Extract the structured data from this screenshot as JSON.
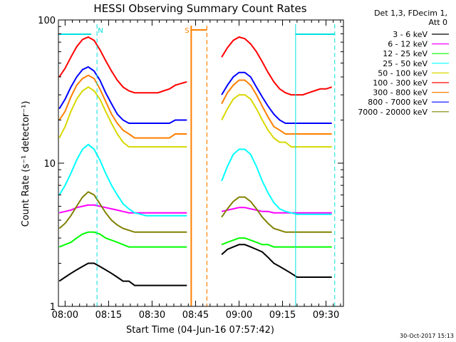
{
  "chart_data": {
    "type": "line",
    "title": "HESSI Observing Summary Count Rates",
    "xlabel": "Start Time (04-Jun-16 07:57:42)",
    "ylabel": "Count Rate (s⁻¹ detector⁻¹)",
    "y_scale": "log",
    "ylim": [
      1,
      100
    ],
    "xlim": [
      "07:57:42",
      "09:36:00"
    ],
    "x_ticks": [
      "08:00",
      "08:15",
      "08:30",
      "08:45",
      "09:00",
      "09:15",
      "09:30"
    ],
    "y_ticks": [
      "1",
      "10",
      "100"
    ],
    "legend_header": [
      "Det 1,3, FDecim 1,",
      "Att 0"
    ],
    "legend_position": "top-right",
    "data_gaps": [
      [
        "08:43:30",
        "08:53:30"
      ]
    ],
    "x": [
      "07:58",
      "08:00",
      "08:02",
      "08:04",
      "08:06",
      "08:08",
      "08:10",
      "08:12",
      "08:14",
      "08:16",
      "08:18",
      "08:20",
      "08:22",
      "08:24",
      "08:26",
      "08:28",
      "08:30",
      "08:32",
      "08:34",
      "08:36",
      "08:38",
      "08:40",
      "08:42",
      "08:54",
      "08:56",
      "08:58",
      "09:00",
      "09:02",
      "09:04",
      "09:06",
      "09:08",
      "09:10",
      "09:12",
      "09:14",
      "09:16",
      "09:18",
      "09:20",
      "09:22",
      "09:24",
      "09:26",
      "09:28",
      "09:30",
      "09:32"
    ],
    "series": [
      {
        "name": "3 - 6 keV",
        "color": "#000000",
        "values": [
          1.5,
          1.6,
          1.7,
          1.8,
          1.9,
          2.0,
          2.0,
          1.9,
          1.8,
          1.7,
          1.6,
          1.5,
          1.5,
          1.4,
          1.4,
          1.4,
          1.4,
          1.4,
          1.4,
          1.4,
          1.4,
          1.4,
          1.4,
          2.3,
          2.5,
          2.6,
          2.7,
          2.7,
          2.6,
          2.5,
          2.4,
          2.2,
          2.0,
          1.9,
          1.8,
          1.7,
          1.6,
          1.6,
          1.6,
          1.6,
          1.6,
          1.6,
          1.6
        ]
      },
      {
        "name": "6 - 12 keV",
        "color": "#ff00ff",
        "values": [
          4.5,
          4.6,
          4.7,
          4.9,
          5.0,
          5.1,
          5.1,
          5.0,
          4.9,
          4.8,
          4.7,
          4.6,
          4.5,
          4.5,
          4.5,
          4.5,
          4.5,
          4.5,
          4.5,
          4.5,
          4.5,
          4.5,
          4.5,
          4.6,
          4.7,
          4.8,
          4.9,
          4.9,
          4.8,
          4.7,
          4.6,
          4.6,
          4.5,
          4.5,
          4.5,
          4.5,
          4.5,
          4.5,
          4.5,
          4.5,
          4.5,
          4.5,
          4.5
        ]
      },
      {
        "name": "12 - 25 keV",
        "color": "#00ff00",
        "values": [
          2.6,
          2.7,
          2.8,
          3.0,
          3.2,
          3.3,
          3.3,
          3.2,
          3.0,
          2.9,
          2.8,
          2.7,
          2.6,
          2.6,
          2.6,
          2.6,
          2.6,
          2.6,
          2.6,
          2.6,
          2.6,
          2.6,
          2.6,
          2.7,
          2.8,
          2.9,
          3.0,
          3.0,
          2.9,
          2.8,
          2.7,
          2.7,
          2.6,
          2.6,
          2.6,
          2.6,
          2.6,
          2.6,
          2.6,
          2.6,
          2.6,
          2.6,
          2.6
        ]
      },
      {
        "name": "25 - 50 keV",
        "color": "#00ffff",
        "values": [
          6.0,
          7.0,
          8.5,
          10.5,
          12.5,
          13.5,
          12.5,
          10.5,
          8.5,
          7.0,
          6.0,
          5.2,
          4.8,
          4.5,
          4.4,
          4.3,
          4.3,
          4.3,
          4.3,
          4.3,
          4.3,
          4.3,
          4.3,
          7.5,
          9.5,
          11.5,
          12.5,
          12.5,
          11.5,
          9.5,
          7.5,
          6.2,
          5.3,
          4.8,
          4.6,
          4.5,
          4.4,
          4.4,
          4.4,
          4.4,
          4.4,
          4.4,
          4.4
        ]
      },
      {
        "name": "50 - 100 keV",
        "color": "#d8d800",
        "values": [
          15,
          18,
          23,
          28,
          32,
          34,
          32,
          28,
          23,
          19,
          16,
          14,
          13,
          13,
          13,
          13,
          13,
          13,
          13,
          13,
          13,
          13,
          13,
          20,
          24,
          28,
          30,
          30,
          28,
          24,
          20,
          17,
          15,
          14,
          14,
          13,
          13,
          13,
          13,
          13,
          13,
          13,
          13
        ]
      },
      {
        "name": "100 - 300 keV",
        "color": "#ff0000",
        "values": [
          40,
          46,
          55,
          65,
          73,
          76,
          72,
          62,
          52,
          44,
          38,
          34,
          32,
          31,
          31,
          31,
          31,
          31,
          32,
          33,
          35,
          36,
          37,
          55,
          64,
          72,
          76,
          74,
          68,
          60,
          51,
          43,
          37,
          33,
          31,
          30,
          30,
          30,
          31,
          32,
          33,
          33,
          34
        ]
      },
      {
        "name": "300 - 800 keV",
        "color": "#ff8000",
        "values": [
          20,
          23,
          29,
          35,
          39,
          41,
          39,
          33,
          27,
          22,
          19,
          17,
          16,
          15,
          15,
          15,
          15,
          15,
          15,
          15,
          16,
          16,
          16,
          26,
          31,
          35,
          38,
          38,
          35,
          30,
          25,
          21,
          18,
          17,
          16,
          16,
          16,
          16,
          16,
          16,
          16,
          16,
          16
        ]
      },
      {
        "name": "800 - 7000 keV",
        "color": "#0000ff",
        "values": [
          24,
          28,
          34,
          40,
          45,
          47,
          44,
          38,
          31,
          26,
          22,
          20,
          19,
          19,
          19,
          19,
          19,
          19,
          19,
          19,
          20,
          20,
          20,
          30,
          35,
          40,
          43,
          43,
          40,
          34,
          29,
          25,
          22,
          20,
          19,
          19,
          19,
          19,
          19,
          19,
          19,
          19,
          19
        ]
      },
      {
        "name": "7000 - 20000 keV",
        "color": "#808000",
        "values": [
          3.5,
          3.8,
          4.3,
          5.0,
          5.8,
          6.3,
          6.0,
          5.2,
          4.5,
          4.0,
          3.7,
          3.5,
          3.4,
          3.3,
          3.3,
          3.3,
          3.3,
          3.3,
          3.3,
          3.3,
          3.3,
          3.3,
          3.3,
          4.2,
          4.8,
          5.4,
          5.8,
          5.8,
          5.4,
          4.8,
          4.2,
          3.8,
          3.5,
          3.4,
          3.3,
          3.3,
          3.3,
          3.3,
          3.3,
          3.3,
          3.3,
          3.3,
          3.3
        ]
      }
    ],
    "annotations": [
      {
        "text": "N",
        "time": "08:11:00",
        "color": "#00e0e0"
      },
      {
        "text": "S",
        "time": "08:43:30",
        "color": "#ff8000"
      }
    ],
    "footer": "30-Oct-2017 15:13"
  }
}
